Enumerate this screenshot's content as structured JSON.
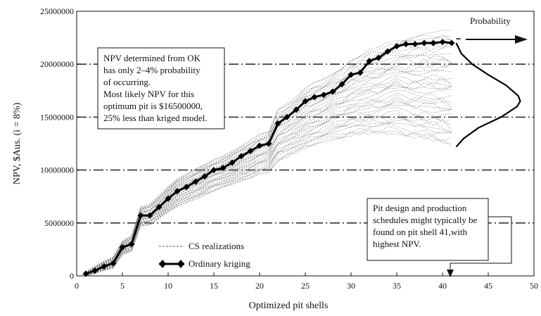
{
  "chart_data": {
    "type": "line",
    "title": "",
    "xlabel": "Optimized pit shells",
    "ylabel": "NPV, $Aus. (i = 8%)",
    "xlim": [
      0,
      50
    ],
    "ylim": [
      0,
      25000000
    ],
    "x_ticks": [
      0,
      5,
      10,
      15,
      20,
      25,
      30,
      35,
      40,
      45,
      50
    ],
    "y_ticks": [
      0,
      5000000,
      10000000,
      15000000,
      20000000,
      25000000
    ],
    "x_tick_labels": [
      "0",
      "5",
      "10",
      "15",
      "20",
      "25",
      "30",
      "35",
      "40",
      "45",
      "50"
    ],
    "y_tick_labels": [
      "0",
      "5000000",
      "10000000",
      "15000000",
      "20000000",
      "25000000"
    ],
    "series": [
      {
        "name": "Ordinary kriging",
        "style": "thick line with diamond markers",
        "x": [
          1,
          2,
          3,
          4,
          5,
          6,
          7,
          8,
          9,
          10,
          11,
          12,
          13,
          14,
          15,
          16,
          17,
          18,
          19,
          20,
          21,
          22,
          23,
          24,
          25,
          26,
          27,
          28,
          29,
          30,
          31,
          32,
          33,
          34,
          35,
          36,
          37,
          38,
          39,
          40,
          41
        ],
        "y": [
          200000,
          500000,
          900000,
          1200000,
          2700000,
          3000000,
          5700000,
          5700000,
          6500000,
          7300000,
          8000000,
          8400000,
          8900000,
          9400000,
          10000000,
          10200000,
          10700000,
          11300000,
          11800000,
          12300000,
          12500000,
          14400000,
          15000000,
          15700000,
          16500000,
          16900000,
          17100000,
          17400000,
          18100000,
          19000000,
          19200000,
          20300000,
          20600000,
          21200000,
          21700000,
          21900000,
          21900000,
          22000000,
          22000000,
          22100000,
          22000000
        ]
      },
      {
        "name": "CS realizations",
        "style": "thin dashed lines (envelope)",
        "x": [
          1,
          2,
          3,
          4,
          5,
          6,
          7,
          8,
          9,
          10,
          11,
          12,
          13,
          14,
          15,
          16,
          17,
          18,
          19,
          20,
          21,
          22,
          23,
          24,
          25,
          26,
          27,
          28,
          29,
          30,
          31,
          32,
          33,
          34,
          35,
          36,
          37,
          38,
          39,
          40,
          41
        ],
        "y_high": [
          400000,
          900000,
          1400000,
          1800000,
          3300000,
          3800000,
          6500000,
          6800000,
          7600000,
          8400000,
          9200000,
          9600000,
          10100000,
          10500000,
          11000000,
          11300000,
          11800000,
          12300000,
          12800000,
          13400000,
          13600000,
          15700000,
          16300000,
          16900000,
          17800000,
          18300000,
          18600000,
          19100000,
          19700000,
          20500000,
          20900000,
          21400000,
          21600000,
          22100000,
          22400000,
          22600000,
          22700000,
          22900000,
          23000000,
          23200000,
          23300000
        ],
        "y_low": [
          0,
          200000,
          500000,
          700000,
          2000000,
          2300000,
          4700000,
          4800000,
          5400000,
          6000000,
          6500000,
          6900000,
          7200000,
          7600000,
          8000000,
          8300000,
          8600000,
          8900000,
          9200000,
          9600000,
          9700000,
          10800000,
          11200000,
          11600000,
          12000000,
          12300000,
          12600000,
          12800000,
          13000000,
          13200000,
          13300000,
          13400000,
          13400000,
          13400000,
          13300000,
          13200000,
          13000000,
          12900000,
          12700000,
          12500000,
          12200000
        ]
      }
    ],
    "legend": {
      "placement": "lower-left",
      "entries": [
        "CS realizations",
        "Ordinary kriging"
      ]
    },
    "probability_axis_label": "Probability",
    "probability_curve": {
      "description": "Probability density of NPV at pit shell 41",
      "npv_values": [
        12200000,
        13000000,
        14000000,
        15000000,
        16000000,
        16500000,
        17000000,
        18000000,
        19000000,
        20000000,
        21000000,
        22000000
      ],
      "relative_density": [
        0.0,
        0.12,
        0.35,
        0.7,
        0.95,
        1.0,
        0.97,
        0.78,
        0.5,
        0.25,
        0.08,
        0.0
      ]
    },
    "annotations": {
      "npv_note": [
        "NPV determined from OK",
        "has only 2–4% probability",
        "of occurring.",
        "Most likely NPV for this",
        "optimum pit is $16500000,",
        "25% less than kriged model."
      ],
      "pit_note": [
        "Pit design and production",
        "schedules might typically be",
        "found on pit shell 41,with",
        "highest NPV."
      ]
    }
  }
}
